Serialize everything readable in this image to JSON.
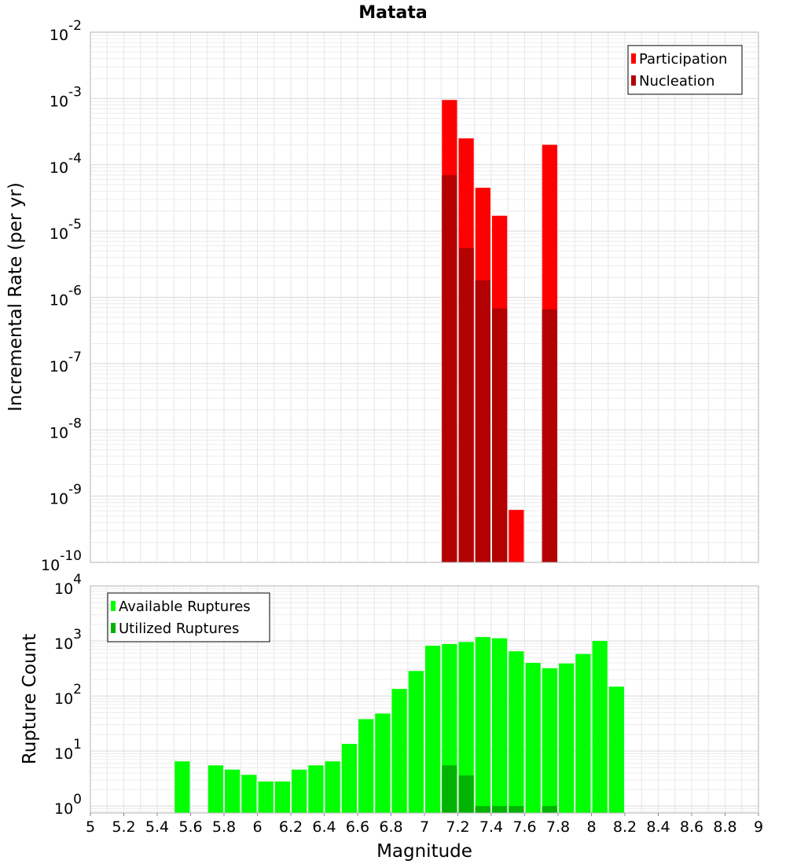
{
  "chart_data": [
    {
      "type": "bar",
      "title": "Matata",
      "xlabel": "",
      "ylabel": "Incremental Rate (per yr)",
      "yscale": "log",
      "ylim": [
        1e-10,
        0.01
      ],
      "xlim": [
        5,
        9
      ],
      "grid": true,
      "legend_position": "top-right",
      "bin_width": 0.1,
      "series": [
        {
          "name": "Participation",
          "color": "#ff0000",
          "x": [
            7.15,
            7.25,
            7.35,
            7.45,
            7.55,
            7.75
          ],
          "values": [
            0.00095,
            0.00025,
            4.5e-05,
            1.7e-05,
            6.2e-10,
            0.0002
          ]
        },
        {
          "name": "Nucleation",
          "color": "#b30000",
          "x": [
            7.15,
            7.25,
            7.35,
            7.45,
            7.75
          ],
          "values": [
            7e-05,
            5.5e-06,
            1.8e-06,
            6.8e-07,
            6.6e-07
          ]
        }
      ],
      "y_ticks": [
        {
          "base": "10",
          "exp": "-10"
        },
        {
          "base": "10",
          "exp": "-9"
        },
        {
          "base": "10",
          "exp": "-8"
        },
        {
          "base": "10",
          "exp": "-7"
        },
        {
          "base": "10",
          "exp": "-6"
        },
        {
          "base": "10",
          "exp": "-5"
        },
        {
          "base": "10",
          "exp": "-4"
        },
        {
          "base": "10",
          "exp": "-3"
        },
        {
          "base": "10",
          "exp": "-2"
        }
      ]
    },
    {
      "type": "bar",
      "title": "",
      "xlabel": "Magnitude",
      "ylabel": "Rupture Count",
      "yscale": "log",
      "ylim": [
        0.75,
        10000
      ],
      "xlim": [
        5,
        9
      ],
      "grid": true,
      "legend_position": "top-left",
      "bin_width": 0.1,
      "series": [
        {
          "name": "Available Ruptures",
          "color": "#00ff00",
          "x": [
            5.55,
            5.75,
            5.85,
            5.95,
            6.05,
            6.15,
            6.25,
            6.35,
            6.45,
            6.55,
            6.65,
            6.75,
            6.85,
            6.95,
            7.05,
            7.15,
            7.25,
            7.35,
            7.45,
            7.55,
            7.65,
            7.75,
            7.85,
            7.95,
            8.05,
            8.15
          ],
          "values": [
            6.5,
            5.5,
            4.6,
            3.7,
            2.8,
            2.8,
            4.6,
            5.5,
            6.5,
            13.5,
            38,
            48,
            135,
            285,
            820,
            880,
            960,
            1180,
            1120,
            650,
            400,
            320,
            390,
            580,
            1000,
            148
          ]
        },
        {
          "name": "Utilized Ruptures",
          "color": "#00b300",
          "x": [
            7.15,
            7.25,
            7.35,
            7.45,
            7.55,
            7.75
          ],
          "values": [
            5.5,
            3.6,
            1,
            1,
            1,
            1
          ]
        }
      ],
      "y_ticks": [
        {
          "base": "10",
          "exp": "0"
        },
        {
          "base": "10",
          "exp": "1"
        },
        {
          "base": "10",
          "exp": "2"
        },
        {
          "base": "10",
          "exp": "3"
        },
        {
          "base": "10",
          "exp": "4"
        }
      ],
      "x_ticks": [
        "5",
        "5.2",
        "5.4",
        "5.6",
        "5.8",
        "6",
        "6.2",
        "6.4",
        "6.6",
        "6.8",
        "7",
        "7.2",
        "7.4",
        "7.6",
        "7.8",
        "8",
        "8.2",
        "8.4",
        "8.6",
        "8.8",
        "9"
      ]
    }
  ]
}
